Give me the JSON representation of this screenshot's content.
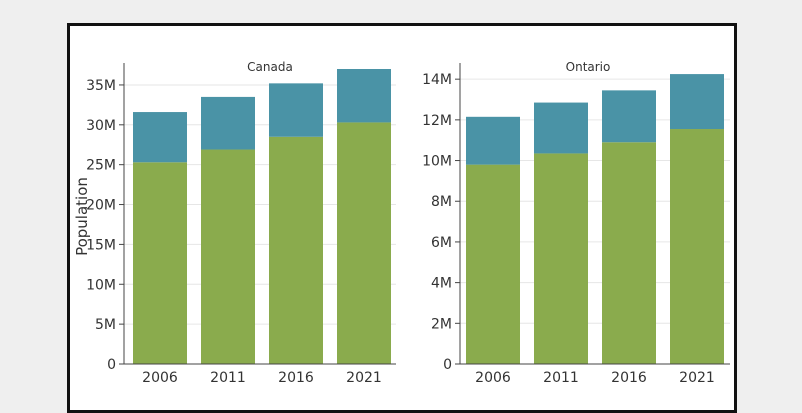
{
  "colors": {
    "green": "#8aab4d",
    "teal": "#4a93a6",
    "background": "#efefef",
    "frame": "#111111"
  },
  "chart_data": [
    {
      "type": "bar",
      "title": "Canada",
      "ylabel": "Population",
      "categories": [
        "2006",
        "2011",
        "2016",
        "2021"
      ],
      "ylim": [
        0,
        37000000
      ],
      "yticks": [
        0,
        5000000,
        10000000,
        15000000,
        20000000,
        25000000,
        30000000,
        35000000
      ],
      "ytick_labels": [
        "0",
        "5M",
        "10M",
        "15M",
        "20M",
        "25M",
        "30M",
        "35M"
      ],
      "stacked": true,
      "series": [
        {
          "values": [
            25300000,
            26900000,
            28500000,
            30300000
          ],
          "color": "#8aab4d"
        },
        {
          "values": [
            6300000,
            6600000,
            6700000,
            6700000
          ],
          "color": "#4a93a6"
        }
      ],
      "grid": true
    },
    {
      "type": "bar",
      "title": "Ontario",
      "ylabel": "",
      "categories": [
        "2006",
        "2011",
        "2016",
        "2021"
      ],
      "ylim": [
        0,
        14500000
      ],
      "yticks": [
        0,
        2000000,
        4000000,
        6000000,
        8000000,
        10000000,
        12000000,
        14000000
      ],
      "ytick_labels": [
        "0",
        "2M",
        "4M",
        "6M",
        "8M",
        "10M",
        "12M",
        "14M"
      ],
      "stacked": true,
      "series": [
        {
          "values": [
            9800000,
            10350000,
            10900000,
            11550000
          ],
          "color": "#8aab4d"
        },
        {
          "values": [
            2350000,
            2500000,
            2550000,
            2700000
          ],
          "color": "#4a93a6"
        }
      ],
      "grid": true
    }
  ]
}
